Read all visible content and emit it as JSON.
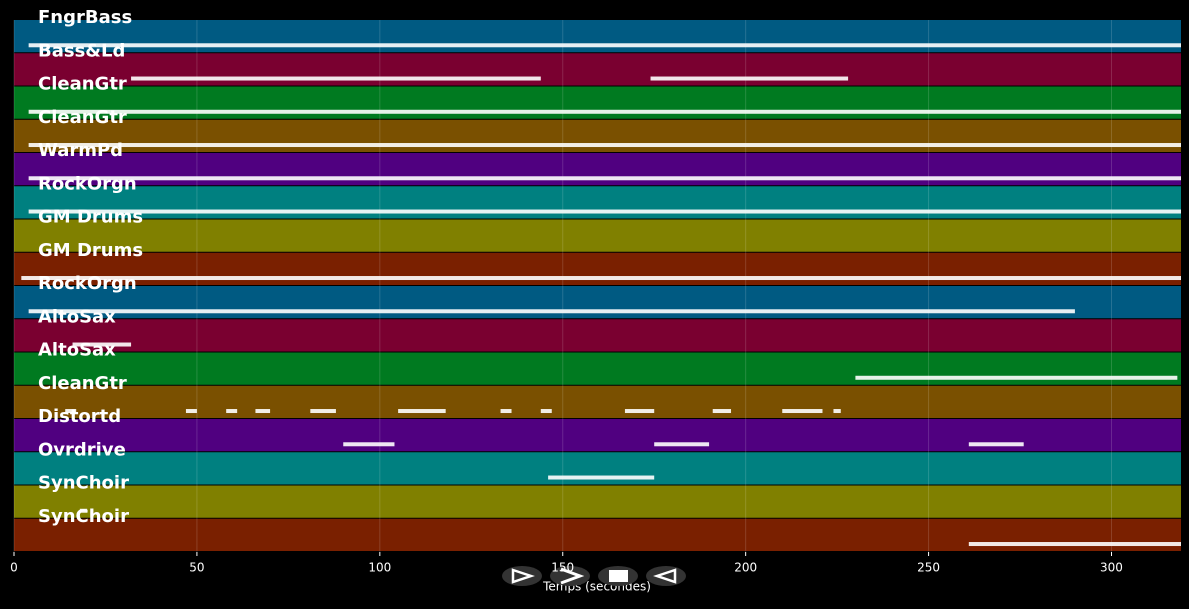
{
  "plot": {
    "xlim": [
      0,
      319
    ],
    "xticks": [
      0,
      50,
      100,
      150,
      200,
      250,
      300
    ],
    "xlabel": "Temps (secondes)",
    "grid": true,
    "tracks": [
      {
        "name": "FngrBass",
        "color": "#005a82",
        "notes": [
          [
            4,
            319
          ]
        ]
      },
      {
        "name": "Bass&Ld",
        "color": "#7a0030",
        "notes": [
          [
            32,
            144
          ],
          [
            174,
            228
          ]
        ]
      },
      {
        "name": "CleanGtr",
        "color": "#007a20",
        "notes": [
          [
            4,
            319
          ]
        ]
      },
      {
        "name": "CleanGtr",
        "color": "#7a5000",
        "notes": [
          [
            4,
            319
          ]
        ]
      },
      {
        "name": "WarmPd",
        "color": "#500080",
        "notes": [
          [
            4,
            319
          ]
        ]
      },
      {
        "name": "RockOrgn",
        "color": "#008080",
        "notes": [
          [
            4,
            319
          ]
        ]
      },
      {
        "name": "GM Drums",
        "color": "#808000",
        "notes": []
      },
      {
        "name": "GM Drums",
        "color": "#7a2000",
        "notes": [
          [
            2,
            319
          ]
        ]
      },
      {
        "name": "RockOrgn",
        "color": "#005a82",
        "notes": [
          [
            4,
            290
          ]
        ]
      },
      {
        "name": "AltoSax",
        "color": "#7a0030",
        "notes": [
          [
            16,
            32
          ]
        ]
      },
      {
        "name": "AltoSax",
        "color": "#007a20",
        "notes": [
          [
            230,
            318
          ]
        ]
      },
      {
        "name": "CleanGtr",
        "color": "#7a5000",
        "notes": [
          [
            14,
            17
          ],
          [
            47,
            50
          ],
          [
            58,
            61
          ],
          [
            66,
            70
          ],
          [
            81,
            88
          ],
          [
            105,
            118
          ],
          [
            133,
            136
          ],
          [
            144,
            147
          ],
          [
            167,
            175
          ],
          [
            191,
            196
          ],
          [
            210,
            221
          ],
          [
            224,
            226
          ]
        ]
      },
      {
        "name": "Distortd",
        "color": "#500080",
        "notes": [
          [
            90,
            104
          ],
          [
            175,
            190
          ],
          [
            261,
            276
          ]
        ]
      },
      {
        "name": "Ovrdrive",
        "color": "#008080",
        "notes": [
          [
            146,
            175
          ]
        ]
      },
      {
        "name": "SynChoir",
        "color": "#808000",
        "notes": [
          [
            18,
            20
          ]
        ]
      },
      {
        "name": "SynChoir",
        "color": "#7a2000",
        "notes": [
          [
            261,
            319
          ]
        ]
      }
    ]
  }
}
